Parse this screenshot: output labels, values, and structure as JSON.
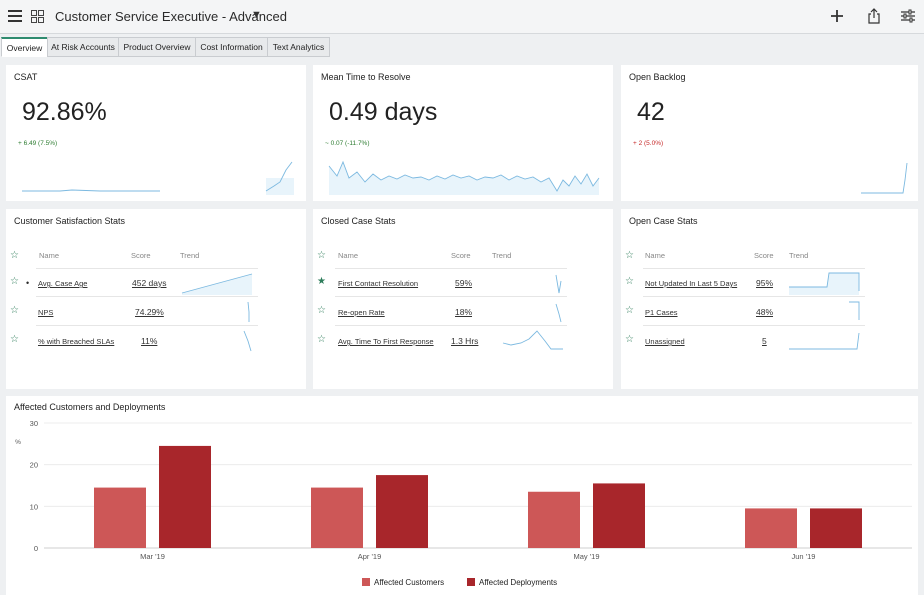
{
  "header": {
    "title": "Customer Service Executive - Advanced"
  },
  "tabs": [
    "Overview",
    "At Risk Accounts",
    "Product Overview",
    "Cost Information",
    "Text Analytics"
  ],
  "kpis": [
    {
      "title": "CSAT",
      "value": "92.86%",
      "delta": "+ 6.49 (7.5%)",
      "trend": "up"
    },
    {
      "title": "Mean Time to Resolve",
      "value": "0.49 days",
      "delta": "~ 0.07 (-11.7%)",
      "trend": "up"
    },
    {
      "title": "Open Backlog",
      "value": "42",
      "delta": "+ 2 (5.0%)",
      "trend": "down"
    }
  ],
  "stats": [
    {
      "title": "Customer Satisfaction Stats",
      "headers": {
        "name": "Name",
        "score": "Score",
        "trend": "Trend"
      },
      "rows": [
        {
          "name": "Avg. Case Age",
          "score": "452 days"
        },
        {
          "name": "NPS",
          "score": "74.29%"
        },
        {
          "name": "% with Breached SLAs",
          "score": "11%"
        }
      ]
    },
    {
      "title": "Closed Case Stats",
      "headers": {
        "name": "Name",
        "score": "Score",
        "trend": "Trend"
      },
      "rows": [
        {
          "name": "First Contact Resolution",
          "score": "59%"
        },
        {
          "name": "Re-open Rate",
          "score": "18%"
        },
        {
          "name": "Avg. Time To First Response",
          "score": "1.3 Hrs"
        }
      ]
    },
    {
      "title": "Open Case Stats",
      "headers": {
        "name": "Name",
        "score": "Score",
        "trend": "Trend"
      },
      "rows": [
        {
          "name": "Not Updated In Last 5 Days",
          "score": "95%"
        },
        {
          "name": "P1 Cases",
          "score": "48%"
        },
        {
          "name": "Unassigned",
          "score": "5"
        }
      ]
    }
  ],
  "chart": {
    "title": "Affected Customers and Deployments",
    "ylabel": "%"
  },
  "chart_data": {
    "type": "bar",
    "categories": [
      "Mar '19",
      "Apr '19",
      "May '19",
      "Jun '19"
    ],
    "series": [
      {
        "name": "Affected Customers",
        "color": "#cd5757",
        "values": [
          14.5,
          14.5,
          13.5,
          9.5
        ]
      },
      {
        "name": "Affected Deployments",
        "color": "#a8262b",
        "values": [
          24.5,
          17.5,
          15.5,
          9.5
        ]
      }
    ],
    "ylim": [
      0,
      30
    ],
    "yticks": [
      "0",
      "10",
      "20",
      "30"
    ],
    "grid": true,
    "legend": "bottom"
  },
  "colors": {
    "accent": "#2e8b6f",
    "spark": "#7cb9e0",
    "up": "#2e7d32",
    "down": "#c62828"
  }
}
